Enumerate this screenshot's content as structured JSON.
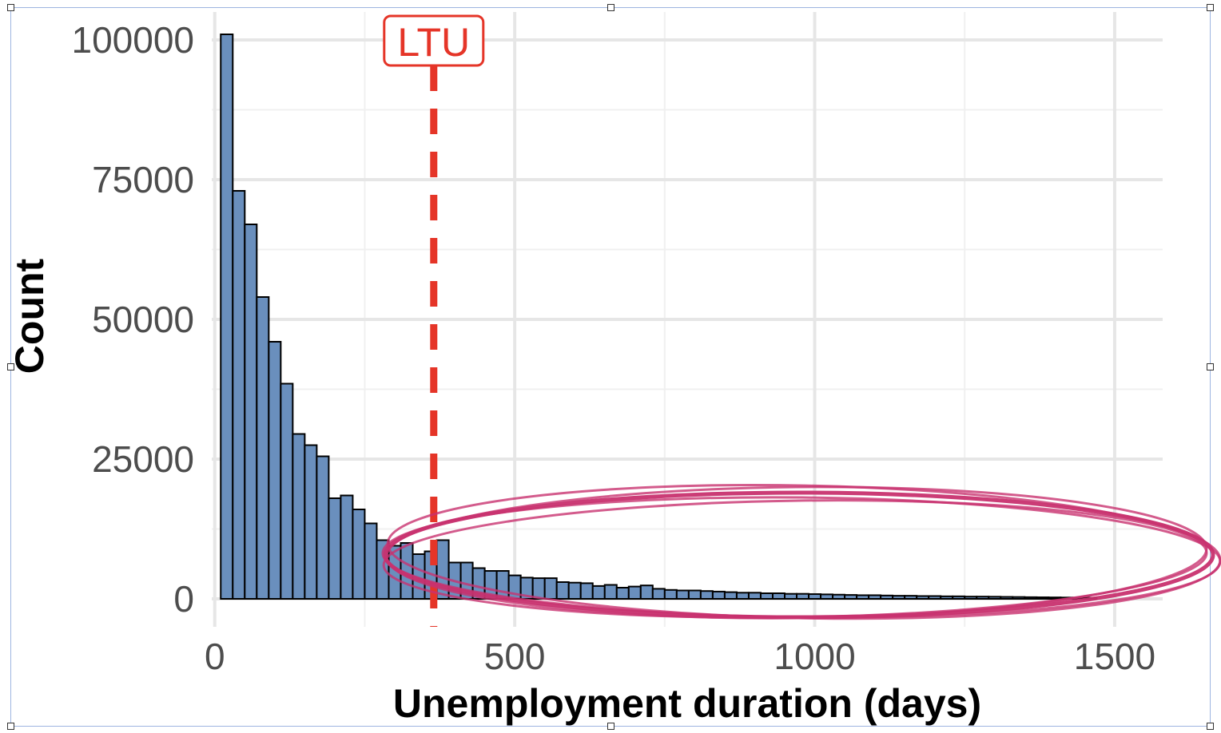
{
  "chart_data": {
    "type": "bar",
    "title": "",
    "xlabel": "Unemployment duration (days)",
    "ylabel": "Count",
    "xlim": [
      -5,
      1580
    ],
    "ylim": [
      -5000,
      105000
    ],
    "x_ticks": [
      0,
      500,
      1000,
      1500
    ],
    "x_tick_labels": [
      "0",
      "500",
      "1000",
      "1500"
    ],
    "y_ticks": [
      0,
      25000,
      50000,
      75000,
      100000
    ],
    "y_tick_labels": [
      "0",
      "25000",
      "50000",
      "75000",
      "100000"
    ],
    "grid": true,
    "bin_width": 20,
    "bin_start": 10,
    "bar_color": "#6a8fbd",
    "bar_edge_color": "#000000",
    "values": [
      101000,
      73000,
      67000,
      54000,
      46000,
      38500,
      29500,
      27500,
      25500,
      18000,
      18500,
      16000,
      13500,
      10500,
      9500,
      10000,
      8000,
      8500,
      10500,
      6500,
      6500,
      5500,
      5000,
      5000,
      4200,
      3800,
      3700,
      3700,
      3000,
      2900,
      2800,
      2300,
      2500,
      2000,
      2200,
      2400,
      1800,
      1600,
      1500,
      1500,
      1400,
      1300,
      1200,
      1100,
      1100,
      1000,
      1000,
      900,
      900,
      850,
      800,
      750,
      700,
      650,
      650,
      600,
      550,
      550,
      500,
      500,
      450,
      450,
      400,
      400,
      380,
      350,
      330,
      300,
      280,
      260,
      240,
      220,
      200
    ],
    "threshold_line": {
      "x": 365,
      "label": "LTU",
      "color": "#e53528"
    },
    "annotation_ellipse_color": "#c8326f"
  }
}
